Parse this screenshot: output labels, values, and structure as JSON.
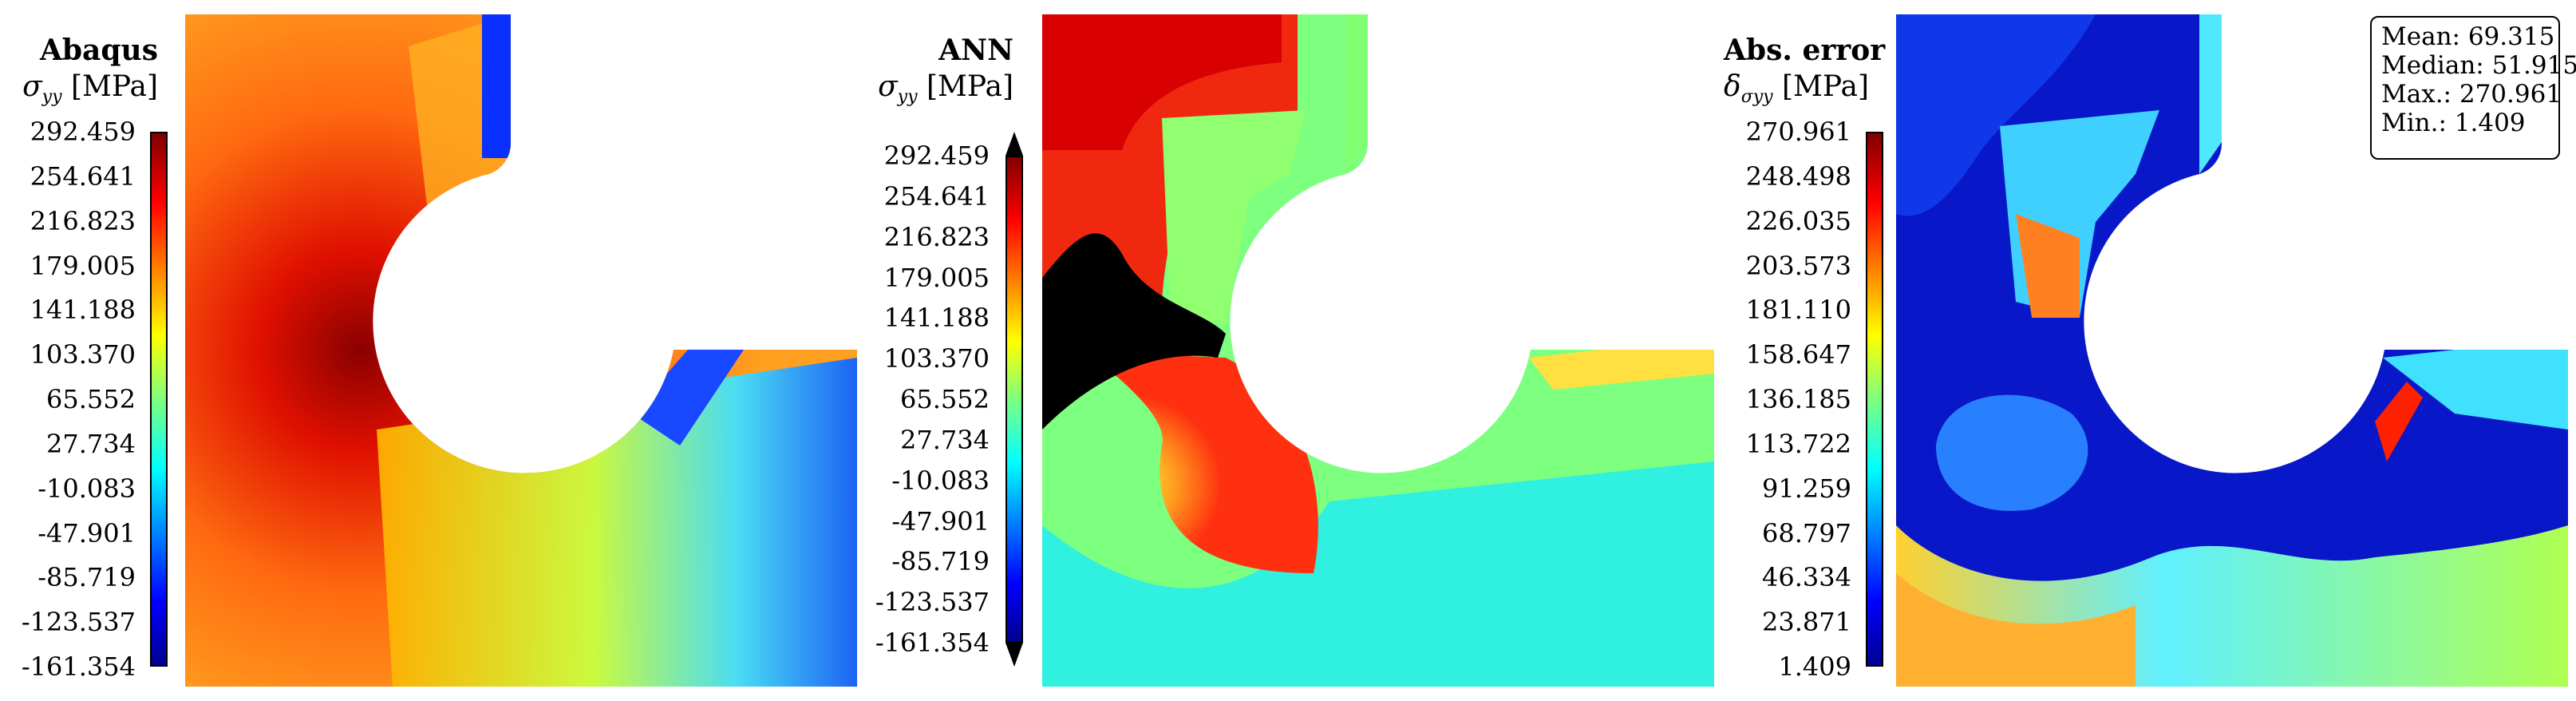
{
  "panels": [
    {
      "title": "Abaqus",
      "quantity": "σ",
      "quantity_sub": "yy",
      "unit": "[MPa]",
      "colorbar_ticks": [
        "292.459",
        "254.641",
        "216.823",
        "179.005",
        "141.188",
        "103.370",
        "65.552",
        "27.734",
        "-10.083",
        "-47.901",
        "-85.719",
        "-123.537",
        "-161.354"
      ]
    },
    {
      "title": "ANN",
      "quantity": "σ",
      "quantity_sub": "yy",
      "unit": "[MPa]",
      "colorbar_ticks": [
        "292.459",
        "254.641",
        "216.823",
        "179.005",
        "141.188",
        "103.370",
        "65.552",
        "27.734",
        "-10.083",
        "-47.901",
        "-85.719",
        "-123.537",
        "-161.354"
      ]
    },
    {
      "title": "Abs. error",
      "quantity": "δ",
      "quantity_sub": "σyy",
      "unit": "[MPa]",
      "colorbar_ticks": [
        "270.961",
        "248.498",
        "226.035",
        "203.573",
        "181.110",
        "158.647",
        "136.185",
        "113.722",
        "91.259",
        "68.797",
        "46.334",
        "23.871",
        "1.409"
      ]
    }
  ],
  "stats": {
    "mean": "Mean: 69.315",
    "median": "Median: 51.915",
    "max": "Max.: 270.961",
    "min": "Min.: 1.409"
  },
  "colormap": [
    "#00008f",
    "#0000ff",
    "#00ffff",
    "#7fff7f",
    "#ffff00",
    "#ff0000",
    "#800000"
  ]
}
